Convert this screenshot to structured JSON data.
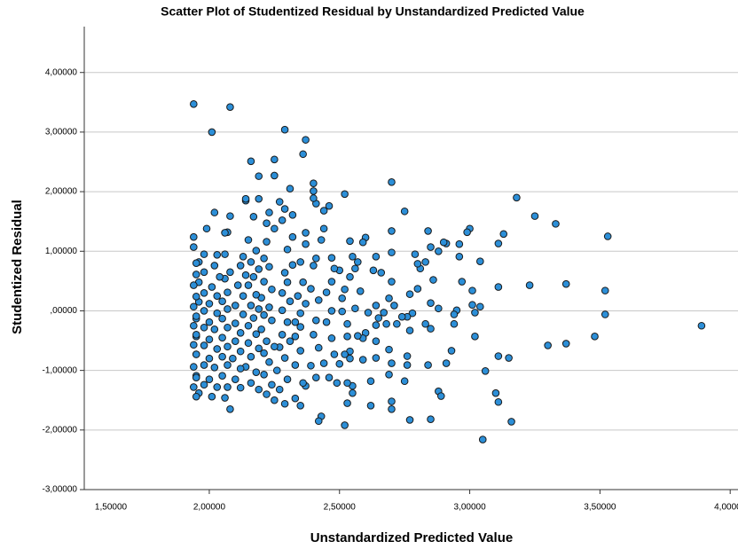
{
  "chart_data": {
    "type": "scatter",
    "title": "Scatter Plot of Studentized Residual by Unstandardized Predicted Value",
    "x_label": "Unstandardized Predicted Value",
    "y_label": "Studentized Residual",
    "color": "#2c8fd8",
    "grid": true,
    "xlim": [
      1.52,
      4.03
    ],
    "ylim": [
      -3,
      4.77
    ],
    "xticks": [
      {
        "value": 1.5,
        "label": "1,50000"
      },
      {
        "value": 2,
        "label": "2,00000"
      },
      {
        "value": 2.5,
        "label": "2,50000"
      },
      {
        "value": 3,
        "label": "3,00000"
      },
      {
        "value": 3.5,
        "label": "3,50000"
      },
      {
        "value": 4,
        "label": "4,00000"
      }
    ],
    "yticks": [
      {
        "value": -3,
        "label": "-3,00000"
      },
      {
        "value": -2,
        "label": "-2,00000"
      },
      {
        "value": -1,
        "label": "-1,00000"
      },
      {
        "value": 0,
        "label": ",00000"
      },
      {
        "value": 1,
        "label": "1,00000"
      },
      {
        "value": 2,
        "label": "2,00000"
      },
      {
        "value": 3,
        "label": "3,00000"
      },
      {
        "value": 4,
        "label": "4,00000"
      }
    ],
    "x": [
      1.94,
      2.08,
      2.01,
      2.29,
      2.37,
      2.16,
      2.25,
      2.36,
      2.25,
      2.19,
      2.52,
      2.4,
      2.7,
      3.18,
      3.25,
      3.33,
      3.53,
      3.89,
      3.52,
      3.52,
      3.48,
      3.37,
      3.37,
      3.3,
      3.23,
      3.15,
      3.16,
      3.05,
      3.06,
      3.11,
      3.1,
      3.11,
      3.11,
      3.13,
      3.11,
      3.04,
      3.0,
      2.99,
      3.04,
      3.01,
      3.01,
      3.02,
      3.02,
      2.96,
      2.96,
      2.97,
      2.95,
      2.94,
      2.94,
      2.91,
      2.9,
      2.88,
      2.86,
      2.85,
      2.88,
      2.93,
      2.91,
      2.84,
      2.85,
      2.83,
      2.81,
      2.8,
      2.79,
      2.8,
      2.85,
      2.83,
      2.84,
      2.85,
      2.88,
      2.89,
      2.75,
      2.77,
      2.78,
      2.76,
      2.74,
      2.77,
      2.76,
      2.75,
      2.76,
      2.77,
      2.7,
      2.7,
      2.7,
      2.69,
      2.71,
      2.72,
      2.67,
      2.68,
      2.69,
      2.7,
      2.7,
      2.7,
      2.69,
      2.64,
      2.66,
      2.63,
      2.64,
      2.65,
      2.64,
      2.64,
      2.64,
      2.62,
      2.61,
      2.6,
      2.59,
      2.59,
      2.62,
      2.6,
      2.59,
      2.57,
      2.56,
      2.54,
      2.58,
      2.56,
      2.57,
      2.54,
      2.54,
      2.55,
      2.5,
      2.52,
      2.51,
      2.51,
      2.53,
      2.53,
      2.52,
      2.54,
      2.5,
      2.55,
      2.55,
      2.53,
      2.52,
      2.53,
      2.47,
      2.48,
      2.47,
      2.45,
      2.47,
      2.45,
      2.47,
      2.48,
      2.46,
      2.49,
      2.44,
      2.43,
      2.41,
      2.4,
      2.39,
      2.42,
      2.41,
      2.4,
      2.42,
      2.39,
      2.44,
      2.41,
      2.37,
      2.43,
      2.42,
      2.37,
      2.37,
      2.35,
      2.36,
      2.34,
      2.37,
      2.35,
      2.33,
      2.35,
      2.33,
      2.35,
      2.33,
      2.36,
      2.33,
      2.35,
      2.4,
      2.41,
      2.4,
      2.44,
      2.46,
      2.31,
      2.32,
      2.29,
      2.27,
      2.28,
      2.25,
      2.32,
      2.3,
      2.32,
      2.29,
      2.3,
      2.28,
      2.31,
      2.28,
      2.3,
      2.28,
      2.31,
      2.27,
      2.29,
      2.26,
      2.3,
      2.27,
      2.29,
      2.23,
      2.22,
      2.22,
      2.21,
      2.23,
      2.21,
      2.24,
      2.2,
      2.23,
      2.21,
      2.24,
      2.2,
      2.22,
      2.25,
      2.21,
      2.23,
      2.21,
      2.24,
      2.22,
      2.25,
      2.19,
      2.17,
      2.15,
      2.18,
      2.16,
      2.19,
      2.17,
      2.15,
      2.18,
      2.16,
      2.19,
      2.17,
      2.15,
      2.18,
      2.15,
      2.19,
      2.16,
      2.14,
      2.18,
      2.16,
      2.19,
      2.14,
      2.13,
      2.12,
      2.14,
      2.11,
      2.13,
      2.1,
      2.13,
      2.1,
      2.12,
      2.1,
      2.12,
      2.09,
      2.12,
      2.1,
      2.12,
      2.08,
      2.14,
      2.08,
      2.07,
      2.06,
      2.08,
      2.06,
      2.07,
      2.05,
      2.07,
      2.05,
      2.07,
      2.05,
      2.07,
      2.05,
      2.07,
      2.05,
      2.07,
      2.06,
      2.06,
      2.03,
      2.02,
      2.04,
      2.01,
      2.03,
      2.0,
      2.03,
      2.0,
      2.02,
      2.0,
      2.03,
      2.0,
      2.02,
      2.0,
      2.03,
      2.01,
      2.02,
      1.99,
      1.98,
      1.96,
      1.98,
      1.96,
      1.98,
      1.96,
      1.98,
      1.95,
      1.98,
      1.95,
      1.98,
      1.95,
      1.98,
      1.95,
      1.98,
      1.96,
      1.94,
      1.94,
      1.95,
      1.95,
      1.94,
      1.95,
      1.94,
      1.95,
      1.94,
      1.95,
      1.94,
      1.95,
      1.94,
      1.95,
      1.94,
      1.95
    ],
    "values": [
      3.47,
      3.42,
      3.0,
      3.04,
      2.87,
      2.51,
      2.54,
      2.63,
      2.27,
      2.26,
      1.96,
      2.14,
      2.16,
      1.9,
      1.59,
      1.46,
      1.25,
      -0.25,
      0.34,
      -0.06,
      -0.43,
      0.45,
      -0.55,
      -0.58,
      0.43,
      -0.79,
      -1.86,
      -2.16,
      -1.01,
      -0.76,
      -1.38,
      -1.53,
      0.4,
      1.29,
      1.13,
      0.83,
      1.38,
      1.32,
      0.07,
      0.1,
      0.34,
      -0.03,
      -0.43,
      1.12,
      0.91,
      0.49,
      0.01,
      -0.06,
      -0.22,
      1.13,
      1.15,
      1.0,
      0.52,
      0.13,
      0.04,
      -0.67,
      -0.88,
      1.34,
      1.07,
      0.82,
      0.71,
      0.79,
      0.95,
      0.37,
      -0.3,
      -0.22,
      -0.91,
      -1.82,
      -1.35,
      -1.43,
      1.67,
      0.28,
      -0.04,
      -0.1,
      -0.1,
      -0.33,
      -0.76,
      -1.18,
      -0.91,
      -1.83,
      1.34,
      0.98,
      0.49,
      0.21,
      0.09,
      -0.22,
      -0.03,
      -0.22,
      -0.65,
      -0.88,
      -1.52,
      -1.65,
      -1.07,
      0.91,
      0.64,
      0.68,
      0.09,
      -0.12,
      -0.24,
      -0.51,
      -0.79,
      -1.18,
      -0.03,
      -0.37,
      -0.46,
      -0.82,
      -1.59,
      1.23,
      1.15,
      0.82,
      0.71,
      0.57,
      0.33,
      0.04,
      -0.42,
      -0.68,
      1.17,
      0.91,
      0.68,
      0.36,
      0.21,
      -0.01,
      -0.22,
      -0.43,
      -0.73,
      -0.8,
      -0.89,
      -1.26,
      -1.38,
      -1.55,
      -1.92,
      -1.21,
      0.89,
      0.71,
      0.49,
      0.31,
      0.0,
      -0.19,
      -0.46,
      -0.73,
      -1.12,
      -1.21,
      1.38,
      1.19,
      0.88,
      0.76,
      0.37,
      0.18,
      -0.16,
      -0.4,
      -0.62,
      -0.92,
      -0.88,
      -1.12,
      -1.26,
      -1.77,
      -1.85,
      1.31,
      1.12,
      0.82,
      0.48,
      0.25,
      0.12,
      -0.04,
      -0.19,
      -0.27,
      -0.43,
      -0.67,
      -0.91,
      -1.21,
      -1.47,
      -1.59,
      2.01,
      1.8,
      1.89,
      1.68,
      1.76,
      2.05,
      1.61,
      1.71,
      1.83,
      1.52,
      1.38,
      1.24,
      1.03,
      0.77,
      0.64,
      0.48,
      0.3,
      0.16,
      0.01,
      -0.19,
      -0.4,
      -0.51,
      -0.61,
      -0.79,
      -1.0,
      -1.15,
      -1.32,
      -1.56,
      1.65,
      1.47,
      1.16,
      0.88,
      0.74,
      0.49,
      0.36,
      0.22,
      0.06,
      -0.07,
      -0.16,
      -0.31,
      -0.51,
      -0.6,
      -0.71,
      -0.86,
      -1.07,
      -1.24,
      -1.4,
      -1.5,
      1.88,
      1.58,
      1.19,
      1.01,
      0.82,
      0.7,
      0.57,
      0.43,
      0.27,
      0.09,
      0.03,
      -0.12,
      -0.25,
      -0.39,
      -0.54,
      -0.63,
      -0.77,
      -0.94,
      -1.03,
      -1.21,
      -1.32,
      1.85,
      0.91,
      0.76,
      0.6,
      0.43,
      0.25,
      0.09,
      -0.06,
      -0.21,
      -0.37,
      -0.51,
      -0.68,
      -0.8,
      -0.97,
      -1.15,
      -1.29,
      -1.65,
      1.88,
      1.59,
      1.32,
      0.95,
      0.65,
      0.54,
      0.31,
      0.16,
      0.03,
      -0.13,
      -0.28,
      -0.45,
      -0.6,
      -0.77,
      -0.91,
      -1.09,
      -1.28,
      -1.46,
      1.31,
      0.94,
      0.76,
      0.57,
      0.4,
      0.25,
      0.12,
      -0.04,
      -0.19,
      -0.31,
      -0.48,
      -0.64,
      -0.8,
      -0.95,
      -1.15,
      -1.28,
      -1.44,
      1.65,
      1.38,
      0.95,
      0.82,
      0.65,
      0.48,
      0.3,
      0.15,
      0.0,
      -0.13,
      -0.28,
      -0.43,
      -0.58,
      -0.73,
      -0.91,
      -1.09,
      -1.24,
      -1.38,
      1.24,
      1.07,
      0.8,
      0.61,
      0.43,
      0.24,
      0.07,
      -0.09,
      -0.25,
      -0.4,
      -0.57,
      -0.73,
      -0.94,
      -1.12,
      -1.28,
      -1.44
    ]
  }
}
